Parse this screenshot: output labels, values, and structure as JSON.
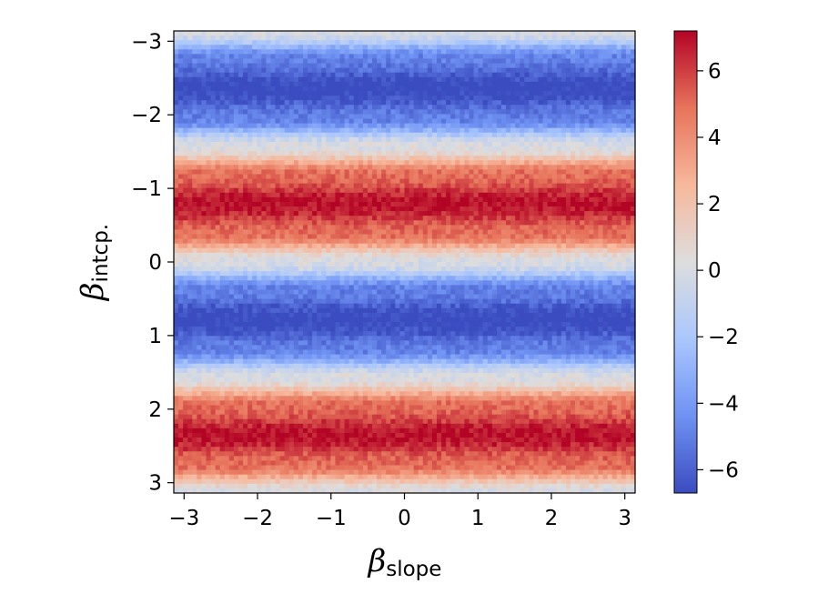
{
  "chart_data": {
    "type": "heatmap",
    "title": "",
    "xlabel": {
      "symbol": "β",
      "subscript": "slope"
    },
    "ylabel": {
      "symbol": "β",
      "subscript": "intcp."
    },
    "x_range": [
      -3.14,
      3.14
    ],
    "y_range": [
      -3.14,
      3.14
    ],
    "y_axis_inverted": true,
    "x_ticks": [
      -3,
      -2,
      -1,
      0,
      1,
      2,
      3
    ],
    "x_tick_labels": [
      "−3",
      "−2",
      "−1",
      "0",
      "1",
      "2",
      "3"
    ],
    "y_ticks": [
      -3,
      -2,
      -1,
      0,
      1,
      2,
      3
    ],
    "y_tick_labels": [
      "−3",
      "−2",
      "−1",
      "0",
      "1",
      "2",
      "3"
    ],
    "function": "value ≈ 7 · sin(2 · β_intcp.) + noise, independent of β_slope",
    "value_profile_by_y": {
      "y": [
        -3.14,
        -2.75,
        -2.36,
        -1.96,
        -1.57,
        -1.18,
        -0.79,
        -0.39,
        0.0,
        0.39,
        0.79,
        1.18,
        1.57,
        1.96,
        2.36,
        2.75,
        3.14
      ],
      "value": [
        0.0,
        -5.0,
        -7.0,
        -5.0,
        0.0,
        5.0,
        7.0,
        5.0,
        0.0,
        -5.0,
        -7.0,
        -5.0,
        0.0,
        5.0,
        7.0,
        5.0,
        0.0
      ]
    },
    "colormap": "coolwarm",
    "colormap_stops": [
      "#3b4cc0",
      "#6f92f3",
      "#aac7fd",
      "#dddddd",
      "#f7b89c",
      "#e7745b",
      "#b40426"
    ],
    "colorbar": {
      "range": [
        -6.7,
        7.2
      ],
      "ticks": [
        -6,
        -4,
        -2,
        0,
        2,
        4,
        6
      ],
      "tick_labels": [
        "−6",
        "−4",
        "−2",
        "0",
        "2",
        "4",
        "6"
      ]
    },
    "grid": false,
    "legend": "none"
  }
}
